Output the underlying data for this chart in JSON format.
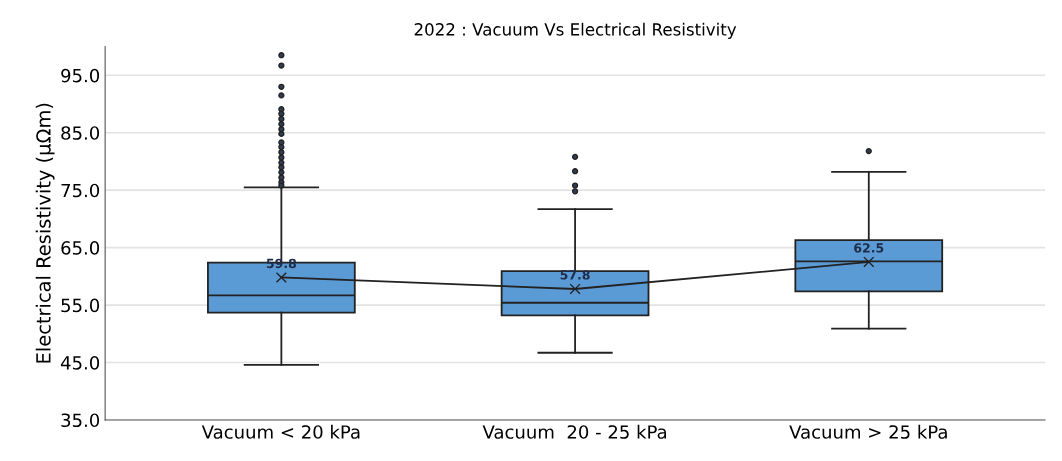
{
  "chart_data": {
    "type": "box",
    "title": "2022 : Vacuum Vs Electrical Resistivity",
    "ylabel": "Electrical Resistivity (µΩm)",
    "categories": [
      "Vacuum < 20 kPa",
      "Vacuum  20 - 25 kPa",
      "Vacuum > 25 kPa"
    ],
    "boxes": [
      {
        "low": 44.6,
        "q1": 53.7,
        "median": 56.7,
        "q3": 62.4,
        "high": 75.5,
        "outliers": [
          98.5,
          96.7,
          93.0,
          91.5,
          89.1,
          88.3,
          87.4,
          86.5,
          85.6,
          84.8,
          83.3,
          82.5,
          81.6,
          80.7,
          79.8,
          79.0,
          78.1,
          77.2,
          76.4,
          75.8
        ]
      },
      {
        "low": 46.7,
        "q1": 53.2,
        "median": 55.4,
        "q3": 60.9,
        "high": 71.7,
        "outliers": [
          80.8,
          78.3,
          75.8,
          74.8
        ]
      },
      {
        "low": 50.9,
        "q1": 57.4,
        "median": 62.6,
        "q3": 66.3,
        "high": 78.2,
        "outliers": [
          81.8
        ]
      }
    ],
    "color": "#5b9bd5",
    "series": [
      {
        "type": "line",
        "values": [
          59.8,
          57.8,
          62.5
        ],
        "color": "#222222",
        "marker": "cross",
        "data_labels": true
      }
    ],
    "ylim": [
      35,
      100
    ],
    "yticks": [
      {
        "value": 35,
        "label": "35.0"
      },
      {
        "value": 45,
        "label": "45.0"
      },
      {
        "value": 55,
        "label": "55.0"
      },
      {
        "value": 65,
        "label": "65.0"
      },
      {
        "value": 75,
        "label": "75.0"
      },
      {
        "value": 85,
        "label": "85.0"
      },
      {
        "value": 95,
        "label": "95.0"
      }
    ],
    "grid": "y"
  }
}
